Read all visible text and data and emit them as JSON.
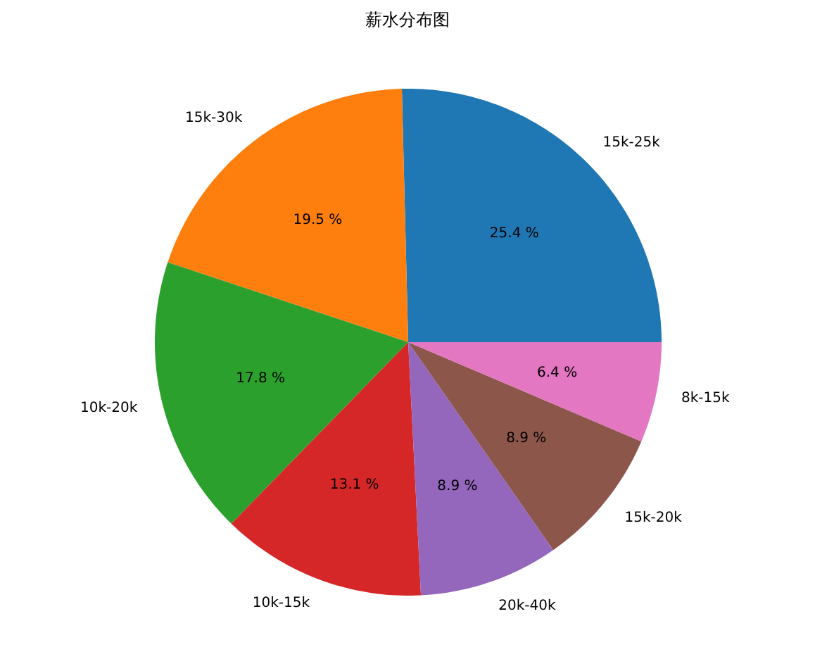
{
  "chart_data": {
    "type": "pie",
    "title": "薪水分布图",
    "categories": [
      "15k-25k",
      "15k-30k",
      "10k-20k",
      "10k-15k",
      "20k-40k",
      "15k-20k",
      "8k-15k"
    ],
    "values": [
      25.4,
      19.5,
      17.8,
      13.1,
      8.9,
      8.9,
      6.4
    ],
    "value_labels": [
      "25.4 %",
      "19.5 %",
      "17.8 %",
      "13.1 %",
      "8.9 %",
      "8.9 %",
      "6.4 %"
    ],
    "colors": [
      "#1f77b4",
      "#ff7f0e",
      "#2ca02c",
      "#d62728",
      "#9467bd",
      "#8c564b",
      "#e377c2"
    ],
    "legend": false
  }
}
